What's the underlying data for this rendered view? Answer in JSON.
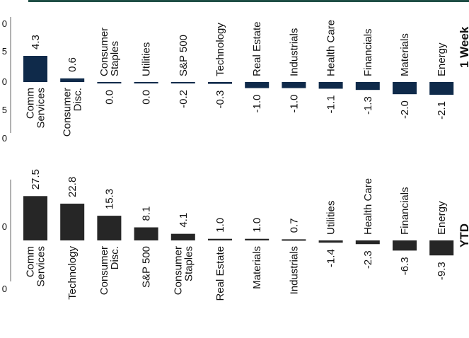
{
  "chart_data": [
    {
      "type": "bar",
      "period_label": "1 Week",
      "categories": [
        "Comm Services",
        "Consumer Disc.",
        "Consumer Staples",
        "Utilities",
        "S&P 500",
        "Technology",
        "Real Estate",
        "Industrials",
        "Health Care",
        "Financials",
        "Materials",
        "Energy"
      ],
      "category_lines": [
        [
          "Comm",
          "Services"
        ],
        [
          "Consumer",
          "Disc."
        ],
        [
          "Consumer",
          "Staples"
        ],
        [
          "Utilities"
        ],
        [
          "S&P 500"
        ],
        [
          "Technology"
        ],
        [
          "Real Estate"
        ],
        [
          "Industrials"
        ],
        [
          "Health Care"
        ],
        [
          "Financials"
        ],
        [
          "Materials"
        ],
        [
          "Energy"
        ]
      ],
      "values": [
        4.3,
        0.6,
        0.0,
        0.0,
        -0.2,
        -0.3,
        -1.0,
        -1.0,
        -1.1,
        -1.3,
        -2.0,
        -2.1
      ],
      "value_labels": [
        "4.3",
        "0.6",
        "0.0",
        "0.0",
        "-0.2",
        "-0.3",
        "-1.0",
        "-1.0",
        "-1.1",
        "-1.3",
        "-2.0",
        "-2.1"
      ],
      "axis_tick_labels": [
        "0",
        "5",
        "0",
        "5",
        "0"
      ],
      "bar_color": "#0f2a4a",
      "ylim": [
        -5,
        6
      ]
    },
    {
      "type": "bar",
      "period_label": "YTD",
      "categories": [
        "Comm Services",
        "Technology",
        "Consumer Disc.",
        "S&P 500",
        "Consumer Staples",
        "Real Estate",
        "Materials",
        "Industrials",
        "Utilities",
        "Health Care",
        "Financials",
        "Energy"
      ],
      "category_lines": [
        [
          "Comm",
          "Services"
        ],
        [
          "Technology"
        ],
        [
          "Consumer",
          "Disc."
        ],
        [
          "S&P 500"
        ],
        [
          "Consumer",
          "Staples"
        ],
        [
          "Real Estate"
        ],
        [
          "Materials"
        ],
        [
          "Industrials"
        ],
        [
          "Utilities"
        ],
        [
          "Health Care"
        ],
        [
          "Financials"
        ],
        [
          "Energy"
        ]
      ],
      "values": [
        27.5,
        22.8,
        15.3,
        8.1,
        4.1,
        1.0,
        1.0,
        0.7,
        -1.4,
        -2.3,
        -6.3,
        -9.3
      ],
      "value_labels": [
        "27.5",
        "22.8",
        "15.3",
        "8.1",
        "4.1",
        "1.0",
        "1.0",
        "0.7",
        "-1.4",
        "-2.3",
        "-6.3",
        "-9.3"
      ],
      "axis_tick_labels": [
        "0",
        "0"
      ],
      "bar_color": "#262626",
      "ylim": [
        -25,
        35
      ]
    }
  ]
}
